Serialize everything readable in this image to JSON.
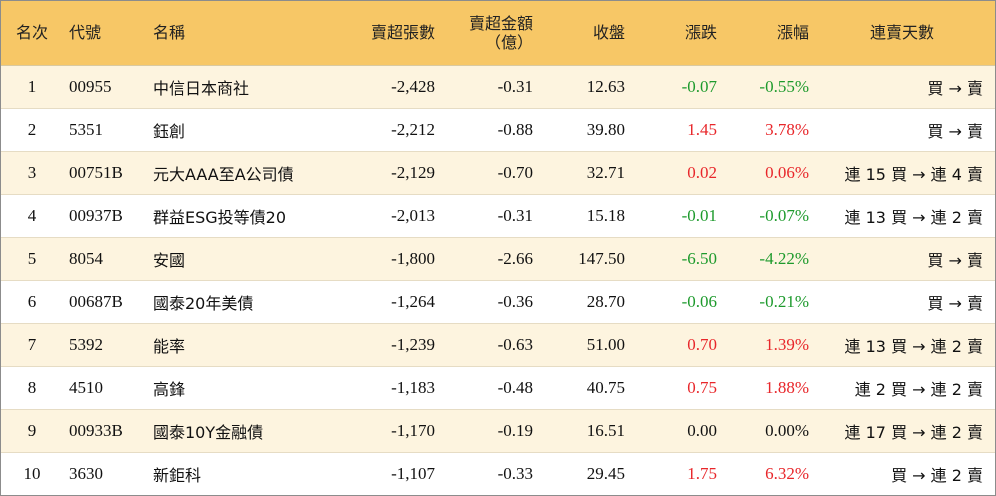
{
  "headers": {
    "rank": "名次",
    "code": "代號",
    "name": "名稱",
    "sell_volume": "賣超張數",
    "sell_amount_line1": "賣超金額",
    "sell_amount_line2": "（億）",
    "close": "收盤",
    "change": "漲跌",
    "change_pct": "漲幅",
    "days": "連賣天數"
  },
  "colors": {
    "header_bg": "#f7c766",
    "odd_row_bg": "#fdf4df",
    "up": "#e8262a",
    "down": "#1d9a2c"
  },
  "rows": [
    {
      "rank": "1",
      "code": "00955",
      "name": "中信日本商社",
      "sell_volume": "-2,428",
      "sell_amount": "-0.31",
      "close": "12.63",
      "change": "-0.07",
      "change_pct": "-0.55%",
      "trend": "down",
      "days": "買 → 賣"
    },
    {
      "rank": "2",
      "code": "5351",
      "name": "鈺創",
      "sell_volume": "-2,212",
      "sell_amount": "-0.88",
      "close": "39.80",
      "change": "1.45",
      "change_pct": "3.78%",
      "trend": "up",
      "days": "買 → 賣"
    },
    {
      "rank": "3",
      "code": "00751B",
      "name": "元大AAA至A公司債",
      "sell_volume": "-2,129",
      "sell_amount": "-0.70",
      "close": "32.71",
      "change": "0.02",
      "change_pct": "0.06%",
      "trend": "up",
      "days": "連 15 買 → 連 4 賣"
    },
    {
      "rank": "4",
      "code": "00937B",
      "name": "群益ESG投等債20",
      "sell_volume": "-2,013",
      "sell_amount": "-0.31",
      "close": "15.18",
      "change": "-0.01",
      "change_pct": "-0.07%",
      "trend": "down",
      "days": "連 13 買 → 連 2 賣"
    },
    {
      "rank": "5",
      "code": "8054",
      "name": "安國",
      "sell_volume": "-1,800",
      "sell_amount": "-2.66",
      "close": "147.50",
      "change": "-6.50",
      "change_pct": "-4.22%",
      "trend": "down",
      "days": "買 → 賣"
    },
    {
      "rank": "6",
      "code": "00687B",
      "name": "國泰20年美債",
      "sell_volume": "-1,264",
      "sell_amount": "-0.36",
      "close": "28.70",
      "change": "-0.06",
      "change_pct": "-0.21%",
      "trend": "down",
      "days": "買 → 賣"
    },
    {
      "rank": "7",
      "code": "5392",
      "name": "能率",
      "sell_volume": "-1,239",
      "sell_amount": "-0.63",
      "close": "51.00",
      "change": "0.70",
      "change_pct": "1.39%",
      "trend": "up",
      "days": "連 13 買 → 連 2 賣"
    },
    {
      "rank": "8",
      "code": "4510",
      "name": "高鋒",
      "sell_volume": "-1,183",
      "sell_amount": "-0.48",
      "close": "40.75",
      "change": "0.75",
      "change_pct": "1.88%",
      "trend": "up",
      "days": "連 2 買 → 連 2 賣"
    },
    {
      "rank": "9",
      "code": "00933B",
      "name": "國泰10Y金融債",
      "sell_volume": "-1,170",
      "sell_amount": "-0.19",
      "close": "16.51",
      "change": "0.00",
      "change_pct": "0.00%",
      "trend": "flat",
      "days": "連 17 買 → 連 2 賣"
    },
    {
      "rank": "10",
      "code": "3630",
      "name": "新鉅科",
      "sell_volume": "-1,107",
      "sell_amount": "-0.33",
      "close": "29.45",
      "change": "1.75",
      "change_pct": "6.32%",
      "trend": "up",
      "days": "買 → 連 2 賣"
    }
  ]
}
